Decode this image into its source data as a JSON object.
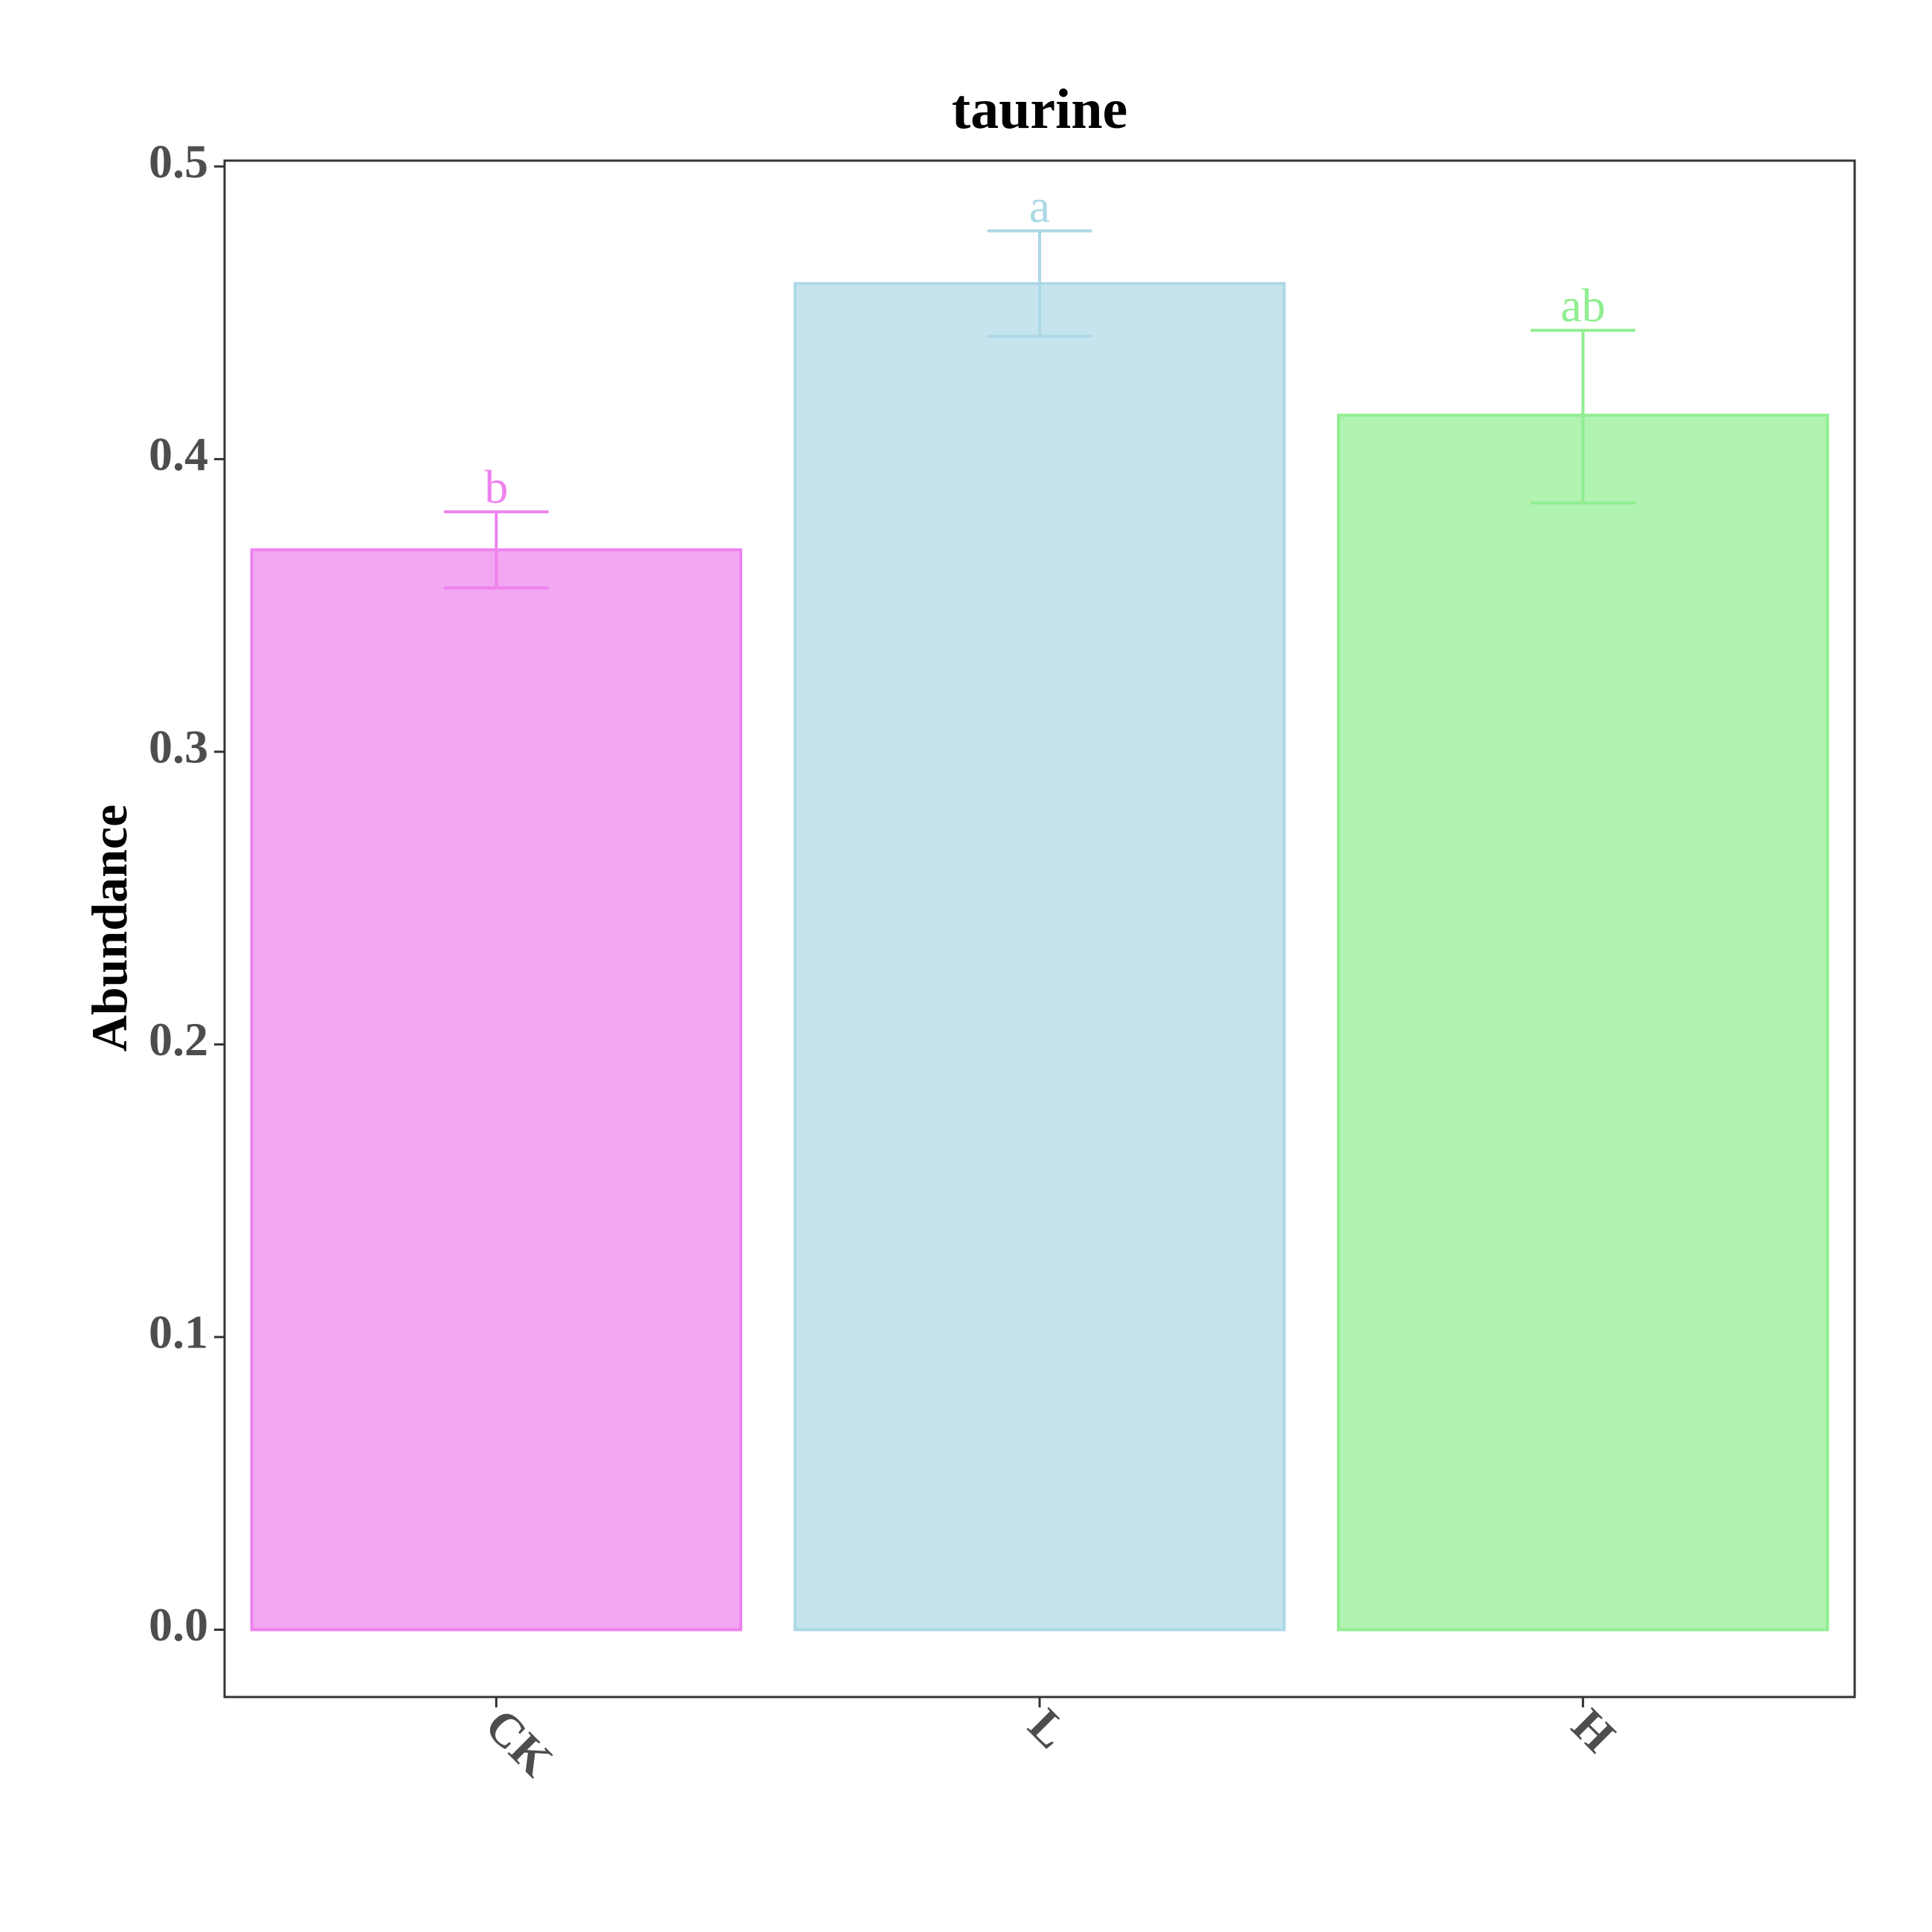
{
  "chart_data": {
    "type": "bar",
    "title": "taurine",
    "xlabel": "",
    "ylabel": "Abundance",
    "categories": [
      "CK",
      "L",
      "H"
    ],
    "values": [
      0.369,
      0.46,
      0.415
    ],
    "error_upper": [
      0.382,
      0.478,
      0.444
    ],
    "error_lower": [
      0.356,
      0.442,
      0.385
    ],
    "significance_labels": [
      "b",
      "a",
      "ab"
    ],
    "colors": [
      "#ee82ee",
      "#add8e6",
      "#90ee90"
    ],
    "ylim": [
      -0.023,
      0.502
    ],
    "yticks": [
      0.0,
      0.1,
      0.2,
      0.3,
      0.4,
      0.5
    ],
    "ytick_labels": [
      "0.0",
      "0.1",
      "0.2",
      "0.3",
      "0.4",
      "0.5"
    ],
    "grid": false,
    "legend": "none",
    "xtick_rotation": "-45deg"
  }
}
